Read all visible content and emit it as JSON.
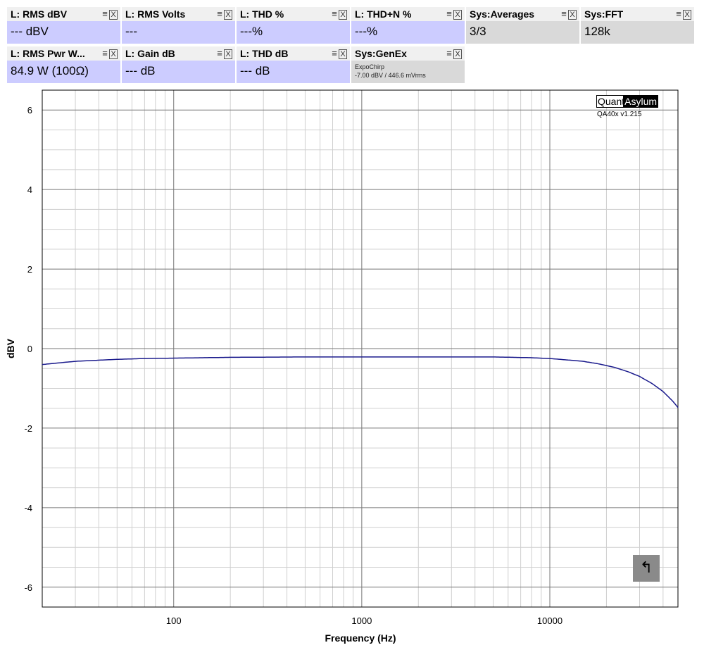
{
  "tiles": [
    {
      "title": "L: RMS dBV",
      "value": "--- dBV",
      "style": "blue"
    },
    {
      "title": "L: RMS Volts",
      "value": "---",
      "style": "blue"
    },
    {
      "title": "L: THD %",
      "value": "---%",
      "style": "blue"
    },
    {
      "title": "L: THD+N %",
      "value": "---%",
      "style": "blue"
    },
    {
      "title": "Sys:Averages",
      "value": "3/3",
      "style": "gray"
    },
    {
      "title": "Sys:FFT",
      "value": "128k",
      "style": "gray"
    },
    {
      "title": "L: RMS Pwr W...",
      "value": "84.9 W (100Ω)",
      "style": "blue"
    },
    {
      "title": "L: Gain dB",
      "value": "--- dB",
      "style": "blue"
    },
    {
      "title": "L: THD dB",
      "value": "--- dB",
      "style": "blue"
    },
    {
      "title": "Sys:GenEx",
      "value": "",
      "sub1": "ExpoChirp",
      "sub2": "-7.00 dBV / 446.6 mVrms",
      "style": "gray"
    }
  ],
  "icons": {
    "menu": "≡",
    "close": "X",
    "back": "↰"
  },
  "logo": {
    "part1": "Quant",
    "part2": "Asylum",
    "version": "QA40x v1.215"
  },
  "chart_data": {
    "type": "line",
    "xlabel": "Frequency (Hz)",
    "ylabel": "dBV",
    "xscale": "log",
    "xlim": [
      20,
      48000
    ],
    "ylim": [
      -6.5,
      6.5
    ],
    "xticks": [
      100,
      1000,
      10000
    ],
    "xtick_labels": [
      "100",
      "1000",
      "10000"
    ],
    "yticks": [
      -6,
      -4,
      -2,
      0,
      2,
      4,
      6
    ],
    "ytick_labels": [
      "-6",
      "-4",
      "-2",
      "0",
      "2",
      "4",
      "6"
    ],
    "grid": true,
    "line_color": "#1a1a8c",
    "series": [
      {
        "x": [
          20,
          30,
          50,
          70,
          100,
          200,
          500,
          1000,
          2000,
          5000,
          8000,
          10000,
          12000,
          15000,
          18000,
          22000,
          26000,
          30000,
          35000,
          40000,
          45000,
          48000
        ],
        "y": [
          -0.4,
          -0.32,
          -0.27,
          -0.25,
          -0.24,
          -0.22,
          -0.21,
          -0.21,
          -0.21,
          -0.21,
          -0.23,
          -0.25,
          -0.28,
          -0.32,
          -0.38,
          -0.47,
          -0.58,
          -0.7,
          -0.88,
          -1.08,
          -1.32,
          -1.48
        ]
      }
    ]
  }
}
